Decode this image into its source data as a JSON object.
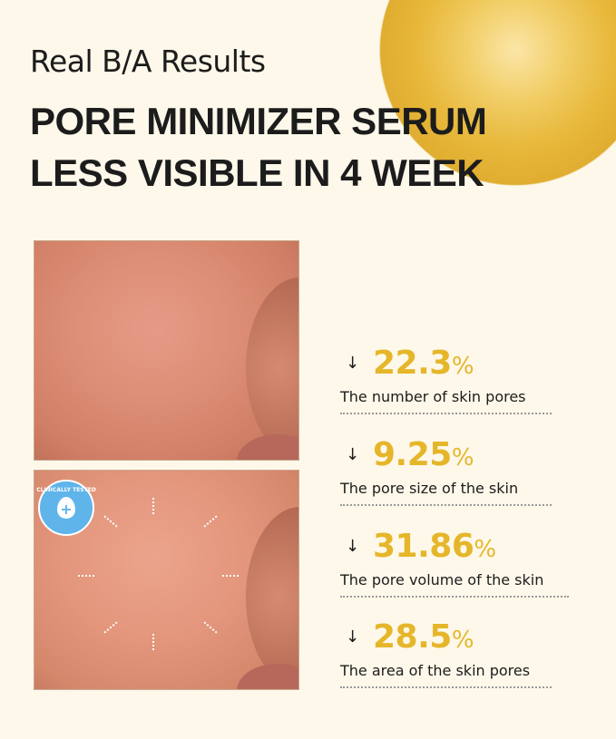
{
  "header": {
    "subtitle": "Real B/A Results",
    "title_line1": "PORE MINIMIZER SERUM",
    "title_line2": "LESS VISIBLE IN 4 WEEK"
  },
  "badge": {
    "text": "CLINICALLY TESTED"
  },
  "colors": {
    "background": "#fdf8ea",
    "accent": "#e6b62a"
  },
  "stats": [
    {
      "value": "22.3",
      "unit": "%",
      "label": "The number of skin pores",
      "icon": "arrow-down-icon"
    },
    {
      "value": "9.25",
      "unit": "%",
      "label": "The pore size of the skin",
      "icon": "arrow-down-icon"
    },
    {
      "value": "31.86",
      "unit": "%",
      "label": "The pore volume of the skin",
      "icon": "arrow-down-icon"
    },
    {
      "value": "28.5",
      "unit": "%",
      "label": "The area of the skin pores",
      "icon": "arrow-down-icon"
    }
  ]
}
